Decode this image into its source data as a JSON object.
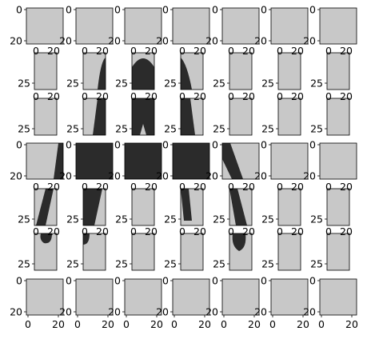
{
  "colors": {
    "paper": "#c8c8c8",
    "ink": "#2b2b2b",
    "axis": "#000000",
    "background": "#ffffff"
  },
  "grid": {
    "rows": 7,
    "cols": 7
  },
  "tick_labels": [
    "0",
    "20",
    "25"
  ],
  "panels": [
    {
      "row": 0,
      "col": 0,
      "shape": "wide",
      "left_tick": "0",
      "left_tick2": "20",
      "bottom_ticks": [],
      "ink": "none"
    },
    {
      "row": 0,
      "col": 1,
      "shape": "wide",
      "left_tick": "0",
      "left_tick2": "20",
      "bottom_ticks": [],
      "ink": "none"
    },
    {
      "row": 0,
      "col": 2,
      "shape": "wide",
      "left_tick": "0",
      "left_tick2": "20",
      "bottom_ticks": [],
      "ink": "none"
    },
    {
      "row": 0,
      "col": 3,
      "shape": "wide",
      "left_tick": "0",
      "left_tick2": "20",
      "bottom_ticks": [],
      "ink": "none"
    },
    {
      "row": 0,
      "col": 4,
      "shape": "wide",
      "left_tick": "0",
      "left_tick2": "20",
      "bottom_ticks": [],
      "ink": "none"
    },
    {
      "row": 0,
      "col": 5,
      "shape": "wide",
      "left_tick": "0",
      "left_tick2": "20",
      "bottom_ticks": [],
      "ink": "none"
    },
    {
      "row": 0,
      "col": 6,
      "shape": "wide",
      "left_tick": "0",
      "left_tick2": "20",
      "bottom_ticks": [],
      "ink": "none"
    },
    {
      "row": 1,
      "col": 0,
      "shape": "tall",
      "left_tick": "25",
      "bottom_ticks": [
        "0",
        "20"
      ],
      "ink": "none"
    },
    {
      "row": 1,
      "col": 1,
      "shape": "tall",
      "left_tick": "25",
      "bottom_ticks": [
        "0",
        "20"
      ],
      "ink": "arc-right"
    },
    {
      "row": 1,
      "col": 2,
      "shape": "tall",
      "left_tick": "25",
      "bottom_ticks": [
        "0",
        "20"
      ],
      "ink": "arc-top"
    },
    {
      "row": 1,
      "col": 3,
      "shape": "tall",
      "left_tick": "25",
      "bottom_ticks": [
        "0",
        "20"
      ],
      "ink": "arc-left"
    },
    {
      "row": 1,
      "col": 4,
      "shape": "tall",
      "left_tick": "25",
      "bottom_ticks": [
        "0",
        "20"
      ],
      "ink": "none"
    },
    {
      "row": 1,
      "col": 5,
      "shape": "tall",
      "left_tick": "25",
      "bottom_ticks": [
        "0",
        "20"
      ],
      "ink": "none"
    },
    {
      "row": 1,
      "col": 6,
      "shape": "tall",
      "left_tick": "25",
      "bottom_ticks": [
        "0",
        "20"
      ],
      "ink": "none"
    },
    {
      "row": 2,
      "col": 0,
      "shape": "tall",
      "left_tick": "25",
      "bottom_ticks": [
        "0",
        "20"
      ],
      "ink": "none"
    },
    {
      "row": 2,
      "col": 1,
      "shape": "tall",
      "left_tick": "25",
      "bottom_ticks": [
        "0",
        "20"
      ],
      "ink": "stroke-right"
    },
    {
      "row": 2,
      "col": 2,
      "shape": "tall",
      "left_tick": "25",
      "bottom_ticks": [
        "0",
        "20"
      ],
      "ink": "full-notch"
    },
    {
      "row": 2,
      "col": 3,
      "shape": "tall",
      "left_tick": "25",
      "bottom_ticks": [
        "0",
        "20"
      ],
      "ink": "stroke-left"
    },
    {
      "row": 2,
      "col": 4,
      "shape": "tall",
      "left_tick": "25",
      "bottom_ticks": [
        "0",
        "20"
      ],
      "ink": "none"
    },
    {
      "row": 2,
      "col": 5,
      "shape": "tall",
      "left_tick": "25",
      "bottom_ticks": [
        "0",
        "20"
      ],
      "ink": "none"
    },
    {
      "row": 2,
      "col": 6,
      "shape": "tall",
      "left_tick": "25",
      "bottom_ticks": [
        "0",
        "20"
      ],
      "ink": "none"
    },
    {
      "row": 3,
      "col": 0,
      "shape": "wide",
      "left_tick": "0",
      "left_tick2": "20",
      "bottom_ticks": [],
      "ink": "edge-right"
    },
    {
      "row": 3,
      "col": 1,
      "shape": "wide",
      "left_tick": "0",
      "left_tick2": "20",
      "bottom_ticks": [],
      "ink": "full"
    },
    {
      "row": 3,
      "col": 2,
      "shape": "wide",
      "left_tick": "0",
      "left_tick2": "20",
      "bottom_ticks": [],
      "ink": "full"
    },
    {
      "row": 3,
      "col": 3,
      "shape": "wide",
      "left_tick": "0",
      "left_tick2": "20",
      "bottom_ticks": [],
      "ink": "full"
    },
    {
      "row": 3,
      "col": 4,
      "shape": "wide",
      "left_tick": "0",
      "left_tick2": "20",
      "bottom_ticks": [],
      "ink": "diag-left"
    },
    {
      "row": 3,
      "col": 5,
      "shape": "wide",
      "left_tick": "0",
      "left_tick2": "20",
      "bottom_ticks": [],
      "ink": "none"
    },
    {
      "row": 3,
      "col": 6,
      "shape": "wide",
      "left_tick": "0",
      "left_tick2": "20",
      "bottom_ticks": [],
      "ink": "none"
    },
    {
      "row": 4,
      "col": 0,
      "shape": "tall",
      "left_tick": "25",
      "bottom_ticks": [
        "0",
        "20"
      ],
      "ink": "diag-down-left"
    },
    {
      "row": 4,
      "col": 1,
      "shape": "tall",
      "left_tick": "25",
      "bottom_ticks": [
        "0",
        "20"
      ],
      "ink": "stroke-left-wide"
    },
    {
      "row": 4,
      "col": 2,
      "shape": "tall",
      "left_tick": "25",
      "bottom_ticks": [
        "0",
        "20"
      ],
      "ink": "none"
    },
    {
      "row": 4,
      "col": 3,
      "shape": "tall",
      "left_tick": "25",
      "bottom_ticks": [
        "0",
        "20"
      ],
      "ink": "stroke-mid"
    },
    {
      "row": 4,
      "col": 4,
      "shape": "tall",
      "left_tick": "25",
      "bottom_ticks": [
        "0",
        "20"
      ],
      "ink": "diag-down-right"
    },
    {
      "row": 4,
      "col": 5,
      "shape": "tall",
      "left_tick": "25",
      "bottom_ticks": [
        "0",
        "20"
      ],
      "ink": "none"
    },
    {
      "row": 4,
      "col": 6,
      "shape": "tall",
      "left_tick": "25",
      "bottom_ticks": [
        "0",
        "20"
      ],
      "ink": "none"
    },
    {
      "row": 5,
      "col": 0,
      "shape": "tall",
      "left_tick": "25",
      "bottom_ticks": [
        "0",
        "20"
      ],
      "ink": "foot-top"
    },
    {
      "row": 5,
      "col": 1,
      "shape": "tall",
      "left_tick": "25",
      "bottom_ticks": [
        "0",
        "20"
      ],
      "ink": "foot-left"
    },
    {
      "row": 5,
      "col": 2,
      "shape": "tall",
      "left_tick": "25",
      "bottom_ticks": [
        "0",
        "20"
      ],
      "ink": "none"
    },
    {
      "row": 5,
      "col": 3,
      "shape": "tall",
      "left_tick": "25",
      "bottom_ticks": [
        "0",
        "20"
      ],
      "ink": "none"
    },
    {
      "row": 5,
      "col": 4,
      "shape": "tall",
      "left_tick": "25",
      "bottom_ticks": [
        "0",
        "20"
      ],
      "ink": "foot-blob"
    },
    {
      "row": 5,
      "col": 5,
      "shape": "tall",
      "left_tick": "25",
      "bottom_ticks": [
        "0",
        "20"
      ],
      "ink": "none"
    },
    {
      "row": 5,
      "col": 6,
      "shape": "tall",
      "left_tick": "25",
      "bottom_ticks": [
        "0",
        "20"
      ],
      "ink": "none"
    },
    {
      "row": 6,
      "col": 0,
      "shape": "wide",
      "left_tick": "0",
      "left_tick2": "20",
      "bottom_ticks": [
        "0",
        "20"
      ],
      "ink": "none"
    },
    {
      "row": 6,
      "col": 1,
      "shape": "wide",
      "left_tick": "0",
      "left_tick2": "20",
      "bottom_ticks": [
        "0",
        "20"
      ],
      "ink": "none"
    },
    {
      "row": 6,
      "col": 2,
      "shape": "wide",
      "left_tick": "0",
      "left_tick2": "20",
      "bottom_ticks": [
        "0",
        "20"
      ],
      "ink": "none"
    },
    {
      "row": 6,
      "col": 3,
      "shape": "wide",
      "left_tick": "0",
      "left_tick2": "20",
      "bottom_ticks": [
        "0",
        "20"
      ],
      "ink": "none"
    },
    {
      "row": 6,
      "col": 4,
      "shape": "wide",
      "left_tick": "0",
      "left_tick2": "20",
      "bottom_ticks": [
        "0",
        "20"
      ],
      "ink": "none"
    },
    {
      "row": 6,
      "col": 5,
      "shape": "wide",
      "left_tick": "0",
      "left_tick2": "20",
      "bottom_ticks": [
        "0",
        "20"
      ],
      "ink": "none"
    },
    {
      "row": 6,
      "col": 6,
      "shape": "wide",
      "left_tick": "0",
      "left_tick2": "20",
      "bottom_ticks": [
        "0",
        "20"
      ],
      "ink": "none"
    }
  ]
}
